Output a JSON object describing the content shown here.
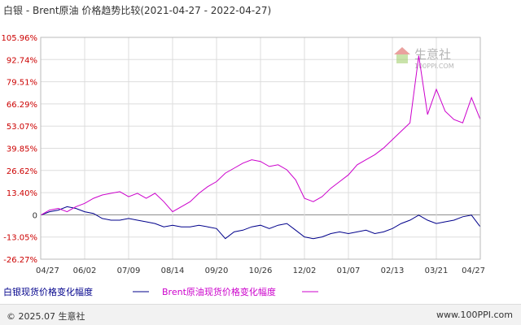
{
  "chart_data": {
    "type": "line",
    "title": "白银 - Brent原油 价格趋势比较(2021-04-27 - 2022-04-27)",
    "x_ticks": [
      "04/27",
      "06/02",
      "07/09",
      "08/14",
      "09/20",
      "10/26",
      "12/02",
      "01/07",
      "02/13",
      "03/21",
      "04/27"
    ],
    "y_ticks": [
      "105.96%",
      "92.74%",
      "79.51%",
      "66.29%",
      "53.07%",
      "39.85%",
      "26.62%",
      "13.40%",
      "0",
      "-13.05%",
      "-26.27%"
    ],
    "ylim": [
      -26.27,
      105.96
    ],
    "grid": true,
    "legend_position": "bottom-left",
    "series": [
      {
        "name": "白银现货价格变化幅度",
        "color": "#00008b",
        "points": [
          [
            "04/27",
            0
          ],
          [
            "05/05",
            2
          ],
          [
            "05/12",
            3
          ],
          [
            "05/20",
            5
          ],
          [
            "05/27",
            4
          ],
          [
            "06/02",
            2
          ],
          [
            "06/10",
            1
          ],
          [
            "06/17",
            -2
          ],
          [
            "06/24",
            -3
          ],
          [
            "07/01",
            -3
          ],
          [
            "07/09",
            -2
          ],
          [
            "07/16",
            -3
          ],
          [
            "07/23",
            -4
          ],
          [
            "07/30",
            -5
          ],
          [
            "08/06",
            -7
          ],
          [
            "08/14",
            -6
          ],
          [
            "08/21",
            -7
          ],
          [
            "08/28",
            -7
          ],
          [
            "09/05",
            -6
          ],
          [
            "09/12",
            -7
          ],
          [
            "09/20",
            -8
          ],
          [
            "09/28",
            -14
          ],
          [
            "10/05",
            -10
          ],
          [
            "10/12",
            -9
          ],
          [
            "10/19",
            -7
          ],
          [
            "10/26",
            -6
          ],
          [
            "11/02",
            -8
          ],
          [
            "11/09",
            -6
          ],
          [
            "11/16",
            -5
          ],
          [
            "11/23",
            -9
          ],
          [
            "12/02",
            -13
          ],
          [
            "12/09",
            -14
          ],
          [
            "12/16",
            -13
          ],
          [
            "12/23",
            -11
          ],
          [
            "12/30",
            -10
          ],
          [
            "01/07",
            -11
          ],
          [
            "01/14",
            -10
          ],
          [
            "01/21",
            -9
          ],
          [
            "01/28",
            -11
          ],
          [
            "02/04",
            -10
          ],
          [
            "02/13",
            -8
          ],
          [
            "02/20",
            -5
          ],
          [
            "02/27",
            -3
          ],
          [
            "03/07",
            0
          ],
          [
            "03/14",
            -3
          ],
          [
            "03/21",
            -5
          ],
          [
            "03/28",
            -4
          ],
          [
            "04/04",
            -3
          ],
          [
            "04/11",
            -1
          ],
          [
            "04/18",
            0
          ],
          [
            "04/27",
            -7
          ]
        ]
      },
      {
        "name": "Brent原油现货价格变化幅度",
        "color": "#cc00cc",
        "points": [
          [
            "04/27",
            0
          ],
          [
            "05/05",
            3
          ],
          [
            "05/12",
            4
          ],
          [
            "05/20",
            2
          ],
          [
            "05/27",
            5
          ],
          [
            "06/02",
            7
          ],
          [
            "06/10",
            10
          ],
          [
            "06/17",
            12
          ],
          [
            "06/24",
            13
          ],
          [
            "07/01",
            14
          ],
          [
            "07/09",
            11
          ],
          [
            "07/16",
            13
          ],
          [
            "07/23",
            10
          ],
          [
            "07/30",
            13
          ],
          [
            "08/06",
            8
          ],
          [
            "08/14",
            2
          ],
          [
            "08/21",
            5
          ],
          [
            "08/28",
            8
          ],
          [
            "09/05",
            13
          ],
          [
            "09/12",
            17
          ],
          [
            "09/20",
            20
          ],
          [
            "09/28",
            25
          ],
          [
            "10/05",
            28
          ],
          [
            "10/12",
            31
          ],
          [
            "10/19",
            33
          ],
          [
            "10/26",
            32
          ],
          [
            "11/02",
            29
          ],
          [
            "11/09",
            30
          ],
          [
            "11/16",
            27
          ],
          [
            "11/23",
            21
          ],
          [
            "12/02",
            10
          ],
          [
            "12/09",
            8
          ],
          [
            "12/16",
            11
          ],
          [
            "12/23",
            16
          ],
          [
            "12/30",
            20
          ],
          [
            "01/07",
            24
          ],
          [
            "01/14",
            30
          ],
          [
            "01/21",
            33
          ],
          [
            "01/28",
            36
          ],
          [
            "02/04",
            40
          ],
          [
            "02/13",
            45
          ],
          [
            "02/20",
            50
          ],
          [
            "02/27",
            55
          ],
          [
            "03/07",
            95
          ],
          [
            "03/14",
            60
          ],
          [
            "03/21",
            75
          ],
          [
            "03/28",
            62
          ],
          [
            "04/04",
            57
          ],
          [
            "04/11",
            55
          ],
          [
            "04/18",
            70
          ],
          [
            "04/27",
            57
          ]
        ]
      }
    ]
  },
  "footer": {
    "copyright": "© 2025.07 生意社",
    "url": "www.100PPI.com"
  },
  "watermark": {
    "name": "生意社",
    "url": "100PPI.COM",
    "icon": "house-logo-icon"
  },
  "colors": {
    "grid": "#dddddd",
    "axis_text_positive": "#cc0000",
    "axis_text_other": "#333333",
    "zero_line": "#888888"
  }
}
